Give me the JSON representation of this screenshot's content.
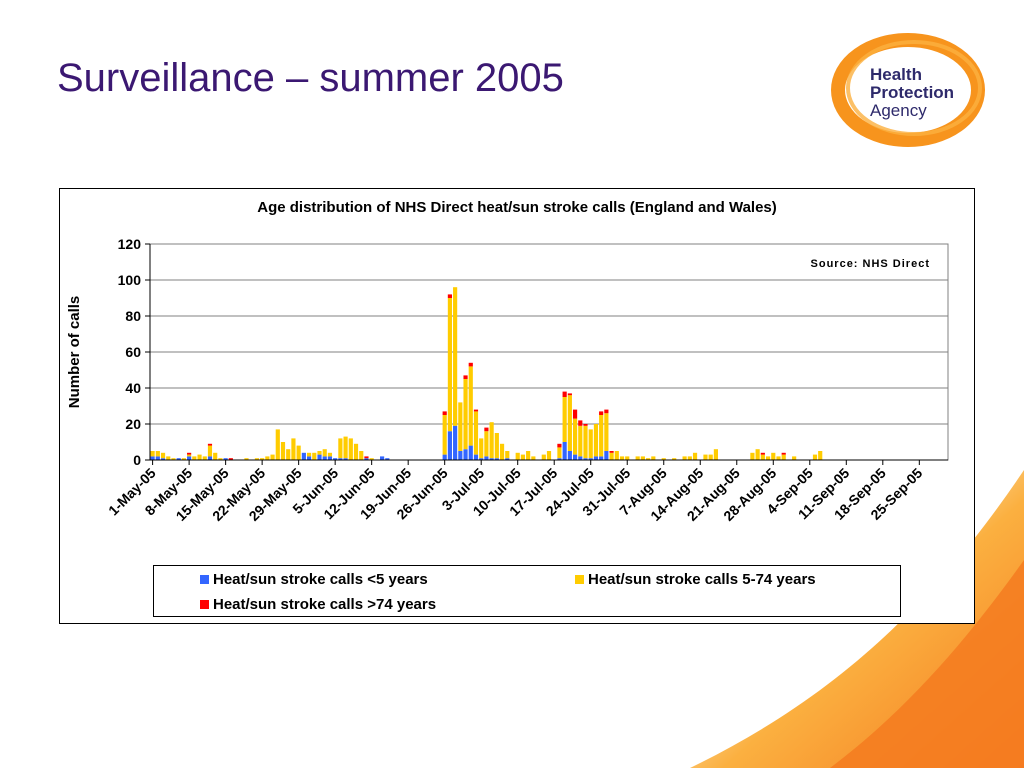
{
  "slide": {
    "title": "Surveillance – summer 2005"
  },
  "logo": {
    "line1": "Health",
    "line2": "Protection",
    "line3": "Agency"
  },
  "colors": {
    "title": "#3b1872",
    "under5": "#3366ff",
    "age5to74": "#ffcc00",
    "over74": "#ff0000",
    "logo_orange": "#f7941d",
    "logo_text": "#2e2a6b"
  },
  "chart_data": {
    "type": "bar",
    "stacked": true,
    "title": "Age distribution of NHS Direct heat/sun stroke calls (England and Wales)",
    "annotation": "Source: NHS Direct",
    "ylabel": "Number of calls",
    "xlabel": "",
    "ylim": [
      0,
      120
    ],
    "yticks": [
      0,
      20,
      40,
      60,
      80,
      100,
      120
    ],
    "grid": true,
    "legend_position": "bottom",
    "start_date": "1-May-05",
    "xtick_labels": [
      "1-May-05",
      "8-May-05",
      "15-May-05",
      "22-May-05",
      "29-May-05",
      "5-Jun-05",
      "12-Jun-05",
      "19-Jun-05",
      "26-Jun-05",
      "3-Jul-05",
      "10-Jul-05",
      "17-Jul-05",
      "24-Jul-05",
      "31-Jul-05",
      "7-Aug-05",
      "14-Aug-05",
      "21-Aug-05",
      "28-Aug-05",
      "4-Sep-05",
      "11-Sep-05",
      "18-Sep-05",
      "25-Sep-05"
    ],
    "series": [
      {
        "name": "Heat/sun stroke calls <5 years",
        "values": [
          2,
          2,
          1,
          0,
          0,
          1,
          0,
          2,
          0,
          0,
          0,
          2,
          0,
          0,
          1,
          0,
          0,
          0,
          0,
          0,
          0,
          0,
          0,
          0,
          0,
          0,
          0,
          0,
          0,
          4,
          2,
          0,
          3,
          2,
          2,
          1,
          1,
          1,
          0,
          0,
          0,
          1,
          0,
          0,
          2,
          1,
          0,
          0,
          0,
          0,
          0,
          0,
          0,
          0,
          0,
          0,
          3,
          16,
          19,
          5,
          6,
          8,
          3,
          1,
          2,
          1,
          1,
          0,
          1,
          0,
          0,
          0,
          0,
          0,
          0,
          0,
          0,
          0,
          1,
          10,
          5,
          3,
          2,
          1,
          1,
          2,
          2,
          5,
          0,
          0,
          0,
          0,
          0,
          0,
          0,
          0,
          0,
          0,
          0,
          0,
          0,
          0,
          0,
          0,
          0,
          0,
          0,
          0,
          0,
          0,
          0,
          0,
          0,
          0,
          0,
          0,
          0,
          0,
          0,
          0,
          0,
          0,
          0,
          0,
          0,
          0,
          0,
          0,
          0,
          0,
          0,
          0,
          0,
          0,
          0,
          0,
          0,
          0,
          0,
          0,
          0,
          0,
          0,
          0,
          0,
          0,
          0,
          0,
          0,
          0,
          0,
          0,
          0
        ]
      },
      {
        "name": "Heat/sun stroke calls 5-74 years",
        "values": [
          3,
          3,
          3,
          2,
          1,
          0,
          1,
          1,
          2,
          3,
          2,
          6,
          4,
          1,
          0,
          0,
          0,
          0,
          1,
          0,
          1,
          1,
          2,
          3,
          17,
          10,
          6,
          12,
          8,
          0,
          2,
          4,
          2,
          4,
          2,
          0,
          11,
          12,
          12,
          9,
          5,
          0,
          1,
          0,
          0,
          0,
          0,
          0,
          0,
          0,
          0,
          0,
          0,
          0,
          0,
          0,
          22,
          74,
          77,
          27,
          39,
          44,
          24,
          11,
          14,
          20,
          14,
          9,
          4,
          0,
          4,
          3,
          5,
          2,
          0,
          3,
          5,
          0,
          6,
          25,
          31,
          20,
          17,
          18,
          16,
          18,
          23,
          21,
          4,
          5,
          2,
          2,
          0,
          2,
          2,
          1,
          2,
          0,
          1,
          0,
          1,
          0,
          2,
          2,
          4,
          0,
          3,
          3,
          6,
          0,
          0,
          0,
          0,
          0,
          0,
          4,
          6,
          3,
          2,
          4,
          2,
          3,
          0,
          2,
          0,
          0,
          0,
          3,
          5,
          0,
          0,
          0,
          0,
          0,
          0,
          0,
          0,
          0,
          0,
          0,
          0,
          0,
          0,
          0,
          0,
          0,
          0,
          0,
          0,
          0,
          0,
          0,
          0
        ]
      },
      {
        "name": "Heat/sun stroke calls >74 years",
        "values": [
          0,
          0,
          0,
          0,
          0,
          0,
          0,
          1,
          0,
          0,
          0,
          1,
          0,
          0,
          0,
          1,
          0,
          0,
          0,
          0,
          0,
          0,
          0,
          0,
          0,
          0,
          0,
          0,
          0,
          0,
          0,
          0,
          0,
          0,
          0,
          0,
          0,
          0,
          0,
          0,
          0,
          1,
          0,
          0,
          0,
          0,
          0,
          0,
          0,
          0,
          0,
          0,
          0,
          0,
          0,
          0,
          2,
          2,
          0,
          0,
          2,
          2,
          1,
          0,
          2,
          0,
          0,
          0,
          0,
          0,
          0,
          0,
          0,
          0,
          0,
          0,
          0,
          0,
          2,
          3,
          1,
          5,
          3,
          1,
          0,
          0,
          2,
          2,
          1,
          0,
          0,
          0,
          0,
          0,
          0,
          0,
          0,
          0,
          0,
          0,
          0,
          0,
          0,
          0,
          0,
          0,
          0,
          0,
          0,
          0,
          0,
          0,
          0,
          0,
          0,
          0,
          0,
          1,
          0,
          0,
          0,
          1,
          0,
          0,
          0,
          0,
          0,
          0,
          0,
          0,
          0,
          0,
          0,
          0,
          0,
          0,
          0,
          0,
          0,
          0,
          0,
          0,
          0,
          0,
          0,
          0,
          0,
          0,
          0,
          0,
          0,
          0,
          0
        ]
      }
    ]
  }
}
